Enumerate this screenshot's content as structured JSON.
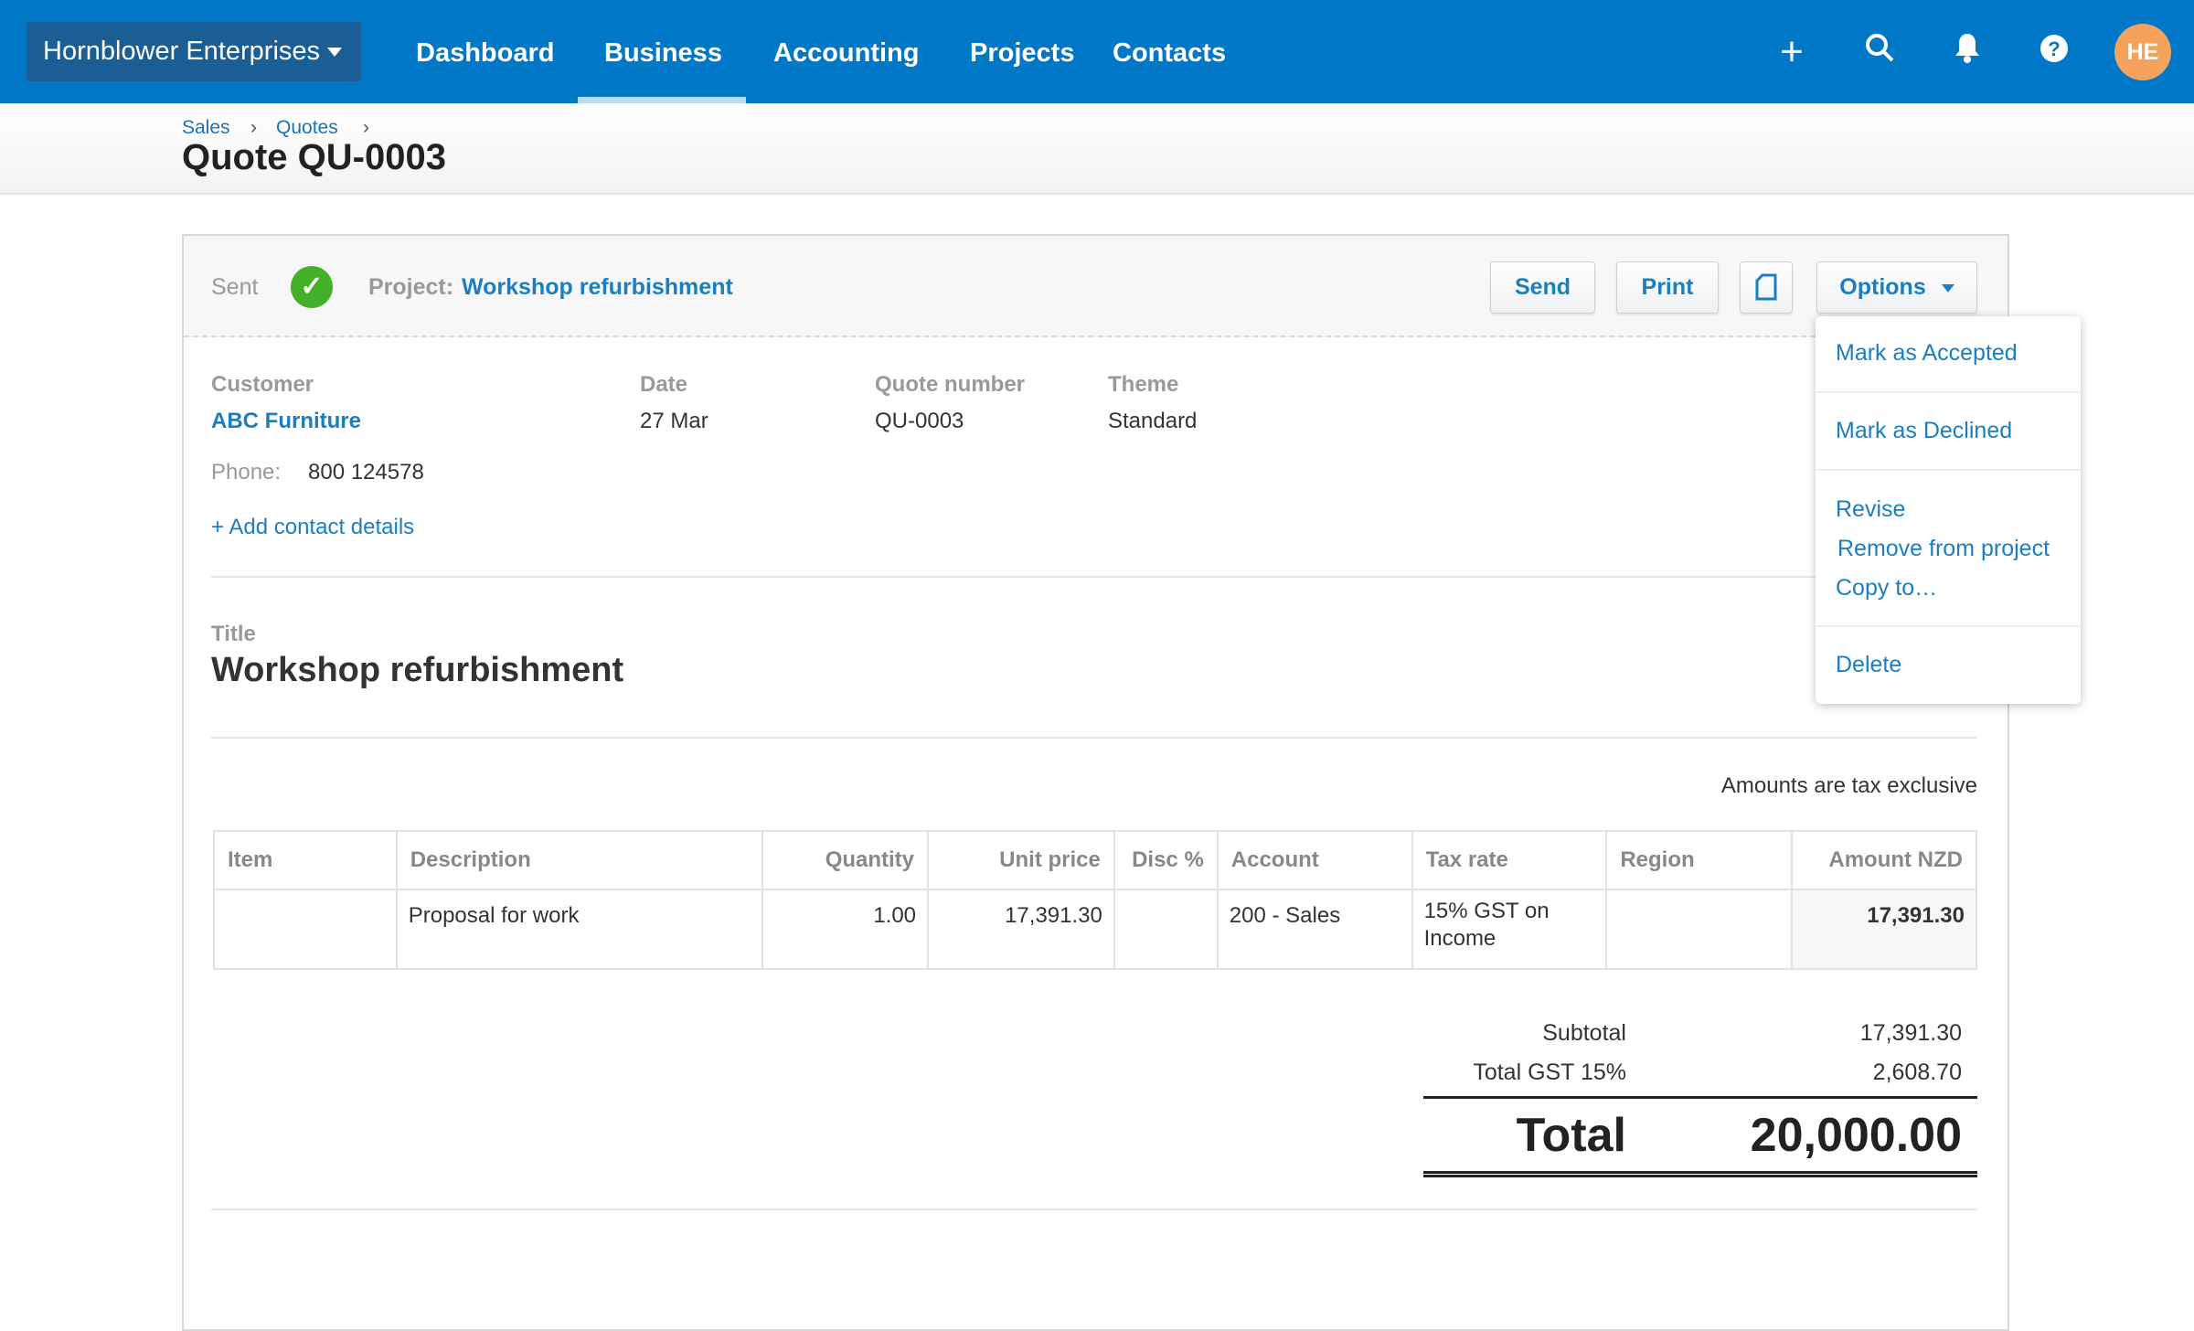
{
  "topbar": {
    "org": "Hornblower Enterprises",
    "nav": [
      "Dashboard",
      "Business",
      "Accounting",
      "Projects",
      "Contacts"
    ],
    "active_nav": "Business",
    "avatar": "HE",
    "colors": {
      "bar": "#0177c7",
      "avatar": "#f5a35c"
    }
  },
  "breadcrumb": [
    "Sales",
    "Quotes"
  ],
  "page_title": "Quote QU-0003",
  "toolbar": {
    "status": "Sent",
    "project_label": "Project:",
    "project": "Workshop refurbishment",
    "send": "Send",
    "print": "Print",
    "options": "Options"
  },
  "options_menu": [
    "Mark as Accepted",
    "Mark as Declined",
    "Revise",
    "Remove from project",
    "Copy to…",
    "Delete"
  ],
  "details": {
    "customer_label": "Customer",
    "customer": "ABC Furniture",
    "date_label": "Date",
    "date": "27 Mar",
    "number_label": "Quote number",
    "number": "QU-0003",
    "theme_label": "Theme",
    "theme": "Standard",
    "phone_label": "Phone:",
    "phone": "800 124578",
    "add_contact": "+ Add contact details"
  },
  "quote_title_label": "Title",
  "quote_title": "Workshop refurbishment",
  "amounts_note": "Amounts are tax exclusive",
  "table": {
    "headers": [
      "Item",
      "Description",
      "Quantity",
      "Unit price",
      "Disc %",
      "Account",
      "Tax rate",
      "Region",
      "Amount NZD"
    ],
    "rows": [
      [
        "",
        "Proposal for work",
        "1.00",
        "17,391.30",
        "",
        "200 - Sales",
        "15% GST on Income",
        "",
        "17,391.30"
      ]
    ]
  },
  "totals": {
    "subtotal_label": "Subtotal",
    "subtotal": "17,391.30",
    "gst_label": "Total GST 15%",
    "gst": "2,608.70",
    "total_label": "Total",
    "total": "20,000.00"
  }
}
